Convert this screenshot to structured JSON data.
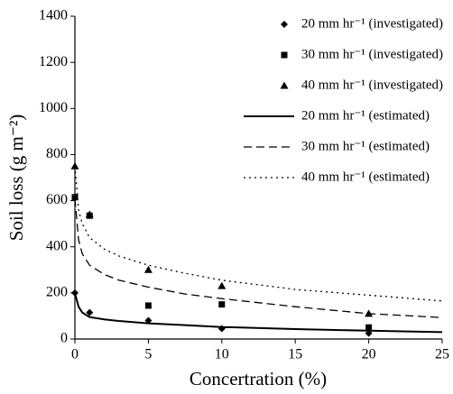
{
  "chart_data": {
    "type": "scatter-line",
    "xlabel": "Concertration (%)",
    "ylabel": "Soil loss (g m⁻²)",
    "xlim": [
      0,
      25
    ],
    "xticks": [
      0,
      5,
      10,
      15,
      20,
      25
    ],
    "ylim": [
      0,
      1400
    ],
    "yticks": [
      0,
      200,
      400,
      600,
      800,
      1000,
      1200,
      1400
    ],
    "legend": "upper right",
    "series": [
      {
        "name": "20 mm hr⁻¹ (investigated)",
        "style": "marker",
        "marker": "diamond",
        "color": "#000000",
        "x": [
          0,
          1,
          5,
          10,
          20
        ],
        "values": [
          200,
          115,
          80,
          45,
          25
        ]
      },
      {
        "name": "30 mm hr⁻¹ (investigated)",
        "style": "marker",
        "marker": "square",
        "color": "#000000",
        "x": [
          0,
          1,
          5,
          10,
          20
        ],
        "values": [
          615,
          535,
          145,
          150,
          50
        ]
      },
      {
        "name": "40 mm hr⁻¹ (investigated)",
        "style": "marker",
        "marker": "triangle",
        "color": "#000000",
        "x": [
          0,
          1,
          5,
          10,
          20
        ],
        "values": [
          750,
          540,
          300,
          230,
          110
        ]
      },
      {
        "name": "20 mm hr⁻¹ (estimated)",
        "style": "line",
        "dash": "solid",
        "color": "#000000",
        "x": [
          0,
          0.25,
          0.5,
          1,
          2,
          3,
          5,
          7.5,
          10,
          15,
          20,
          25
        ],
        "values": [
          200,
          140,
          115,
          95,
          85,
          78,
          68,
          60,
          52,
          43,
          36,
          30
        ]
      },
      {
        "name": "30 mm hr⁻¹ (estimated)",
        "style": "line",
        "dash": "dashed",
        "color": "#000000",
        "x": [
          0,
          0.25,
          0.5,
          1,
          2,
          3,
          5,
          7.5,
          10,
          15,
          20,
          25
        ],
        "values": [
          610,
          430,
          370,
          320,
          280,
          255,
          225,
          195,
          175,
          140,
          110,
          93
        ]
      },
      {
        "name": "40 mm hr⁻¹ (estimated)",
        "style": "line",
        "dash": "dotted",
        "color": "#000000",
        "x": [
          0,
          0.25,
          0.5,
          1,
          2,
          3,
          5,
          7.5,
          10,
          15,
          20,
          25
        ],
        "values": [
          750,
          560,
          500,
          440,
          390,
          360,
          320,
          285,
          255,
          215,
          190,
          165
        ]
      }
    ]
  }
}
